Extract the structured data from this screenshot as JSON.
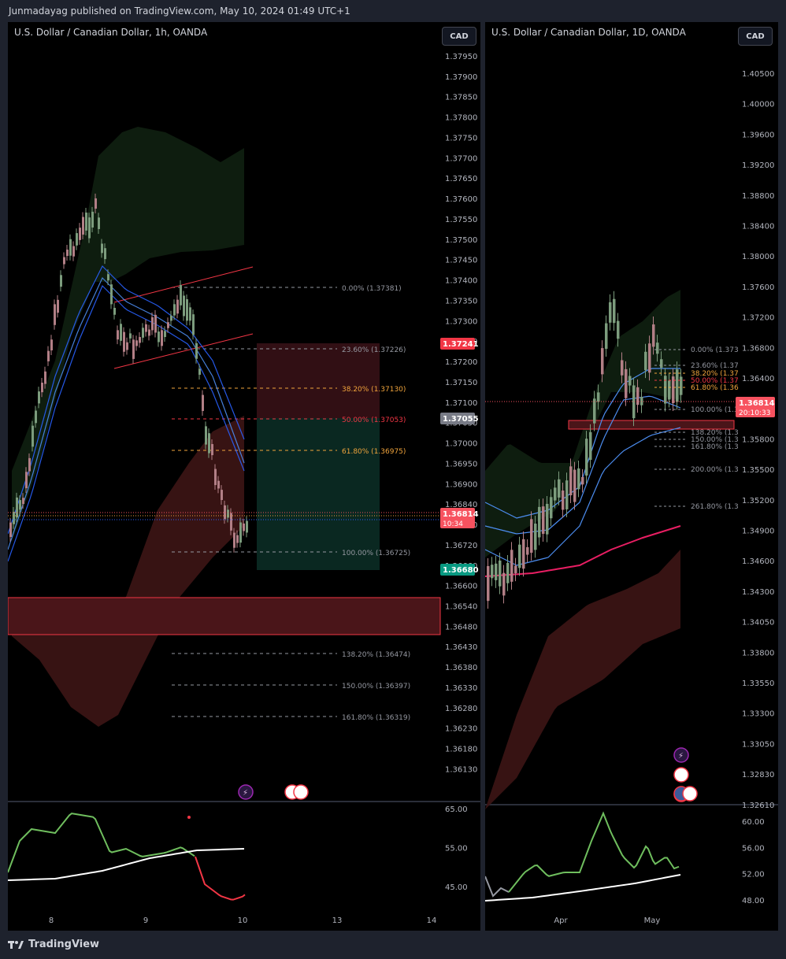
{
  "header": {
    "publish_line": "Junmadayag published on TradingView.com, May 10, 2024 01:49 UTC+1"
  },
  "left_chart": {
    "title": "U.S. Dollar / Canadian Dollar, 1h, OANDA",
    "currency_button": "CAD",
    "price_axis": [
      "1.37950",
      "1.37900",
      "1.37850",
      "1.37800",
      "1.37750",
      "1.37700",
      "1.37650",
      "1.37600",
      "1.37550",
      "1.37500",
      "1.37450",
      "1.37400",
      "1.37350",
      "1.37300",
      "1.37250",
      "1.37200",
      "1.37150",
      "1.37100",
      "1.37050",
      "1.37000",
      "1.36950",
      "1.36900",
      "1.36840",
      "1.36780",
      "1.36720",
      "1.36660",
      "1.36600",
      "1.36540",
      "1.36480",
      "1.36430",
      "1.36380",
      "1.36330",
      "1.36280",
      "1.36230",
      "1.36180",
      "1.36130"
    ],
    "price_tags": [
      {
        "label": "1.37241",
        "color": "#f23645"
      },
      {
        "label": "1.37055",
        "color": "#787b86"
      },
      {
        "label": "1.36814",
        "sub": "10:34",
        "color": "#f7525f"
      },
      {
        "label": "1.36680",
        "color": "#089981"
      }
    ],
    "fib_levels": [
      {
        "label": "0.00% (1.37381)",
        "color": "#9598a1"
      },
      {
        "label": "23.60% (1.37226)",
        "color": "#9598a1"
      },
      {
        "label": "38.20% (1.37130)",
        "color": "#f0a43c"
      },
      {
        "label": "50.00% (1.37053)",
        "color": "#f23645"
      },
      {
        "label": "61.80% (1.36975)",
        "color": "#f0a43c"
      },
      {
        "label": "100.00% (1.36725)",
        "color": "#9598a1"
      },
      {
        "label": "138.20% (1.36474)",
        "color": "#9598a1"
      },
      {
        "label": "150.00% (1.36397)",
        "color": "#9598a1"
      },
      {
        "label": "161.80% (1.36319)",
        "color": "#9598a1"
      }
    ],
    "rsi_axis": [
      "65.00",
      "55.00",
      "45.00"
    ],
    "time_axis": [
      "8",
      "9",
      "10",
      "13",
      "14"
    ]
  },
  "right_chart": {
    "title": "U.S. Dollar / Canadian Dollar, 1D, OANDA",
    "currency_button": "CAD",
    "price_axis": [
      "1.40500",
      "1.40000",
      "1.39600",
      "1.39200",
      "1.38800",
      "1.38400",
      "1.38000",
      "1.37600",
      "1.37200",
      "1.36800",
      "1.36400",
      "1.36100",
      "1.35800",
      "1.35500",
      "1.35200",
      "1.34900",
      "1.34600",
      "1.34300",
      "1.34050",
      "1.33800",
      "1.33550",
      "1.33300",
      "1.33050",
      "1.32830",
      "1.32610"
    ],
    "price_tag": {
      "label": "1.36814",
      "sub": "20:10:33",
      "color": "#f7525f"
    },
    "fib_levels": [
      {
        "label": "0.00% (1.373",
        "color": "#9598a1"
      },
      {
        "label": "23.60% (1.37",
        "color": "#9598a1"
      },
      {
        "label": "38.20% (1.37",
        "color": "#f0a43c"
      },
      {
        "label": "50.00% (1.37",
        "color": "#f23645"
      },
      {
        "label": "61.80% (1.36",
        "color": "#f0a43c"
      },
      {
        "label": "100.00% (1.3",
        "color": "#9598a1"
      },
      {
        "label": "138.20% (1.3",
        "color": "#9598a1"
      },
      {
        "label": "150.00% (1.3",
        "color": "#9598a1"
      },
      {
        "label": "161.80% (1.3",
        "color": "#9598a1"
      },
      {
        "label": "200.00% (1.3",
        "color": "#9598a1"
      },
      {
        "label": "261.80% (1.3",
        "color": "#9598a1"
      }
    ],
    "rsi_axis": [
      "60.00",
      "56.00",
      "52.00",
      "48.00"
    ],
    "time_axis": [
      "Apr",
      "May"
    ]
  },
  "footer": {
    "brand": "TradingView"
  }
}
